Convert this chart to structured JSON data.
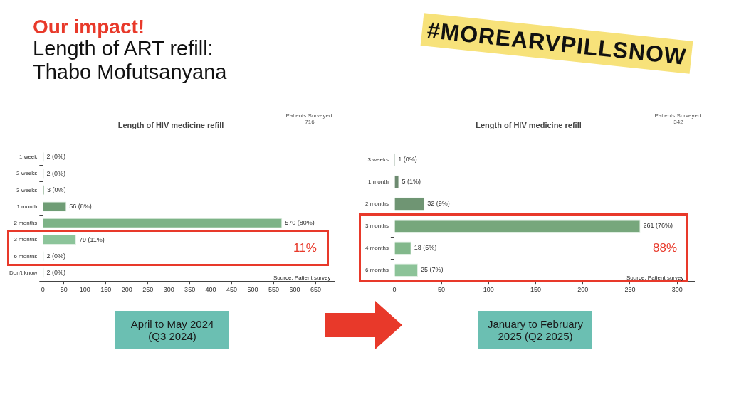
{
  "chart_data": [
    {
      "type": "bar",
      "orientation": "horizontal",
      "title": "Length of HIV medicine refill",
      "categories": [
        "1 week",
        "2 weeks",
        "3 weeks",
        "1 month",
        "2 months",
        "3 months",
        "6 months",
        "Don't know"
      ],
      "values": [
        2,
        2,
        3,
        56,
        570,
        79,
        2,
        2
      ],
      "value_labels": [
        "2 (0%)",
        "2 (0%)",
        "3 (0%)",
        "56 (8%)",
        "570 (80%)",
        "79 (11%)",
        "2 (0%)",
        "2 (0%)"
      ],
      "colors": [
        "#4f6b55",
        "#5f7f63",
        "#6e9a73",
        "#6f9d75",
        "#7db387",
        "#8cc49a",
        "#8cc49a",
        "#8cc49a"
      ],
      "xlim": [
        0,
        695
      ],
      "xticks": [
        0,
        50,
        100,
        150,
        200,
        250,
        300,
        350,
        400,
        450,
        500,
        550,
        600,
        650
      ],
      "grid": false,
      "legend": false,
      "annotations": [
        "Our impact!",
        "Length of ART refill:\nThabo Mofutsanyana",
        "#MOREARVPILLSNOW",
        "Patients Surveyed:\n716",
        "Source: Patient survey",
        "11%",
        "April to May 2024\n(Q3 2024)"
      ]
    },
    {
      "type": "bar",
      "orientation": "horizontal",
      "title": "Length of HIV medicine refill",
      "categories": [
        "3 weeks",
        "1 month",
        "2 months",
        "3 months",
        "4 months",
        "6 months"
      ],
      "values": [
        1,
        5,
        32,
        261,
        18,
        25
      ],
      "value_labels": [
        "1 (0%)",
        "5 (1%)",
        "32 (9%)",
        "261 (76%)",
        "18 (5%)",
        "25 (7%)"
      ],
      "colors": [
        "#4f6b55",
        "#6d8a70",
        "#6f9573",
        "#77a77c",
        "#82b88b",
        "#8cc398"
      ],
      "xlim": [
        0,
        318
      ],
      "xticks": [
        0,
        50,
        100,
        150,
        200,
        250,
        300
      ],
      "grid": false,
      "legend": false,
      "annotations": [
        "Patients Surveyed:\n342",
        "Source: Patient survey",
        "88%",
        "January to February\n2025 (Q2 2025)"
      ]
    }
  ]
}
